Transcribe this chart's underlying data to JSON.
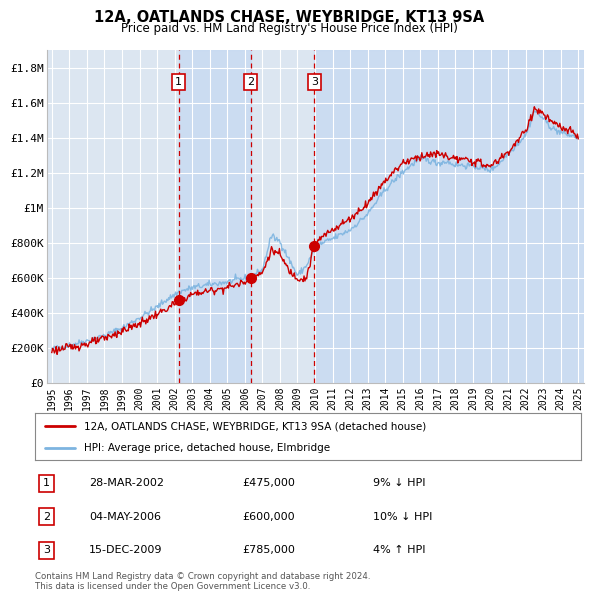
{
  "title": "12A, OATLANDS CHASE, WEYBRIDGE, KT13 9SA",
  "subtitle": "Price paid vs. HM Land Registry's House Price Index (HPI)",
  "legend_line1": "12A, OATLANDS CHASE, WEYBRIDGE, KT13 9SA (detached house)",
  "legend_line2": "HPI: Average price, detached house, Elmbridge",
  "transactions": [
    {
      "num": 1,
      "date": "28-MAR-2002",
      "price": 475000,
      "pct": "9%",
      "dir": "↓"
    },
    {
      "num": 2,
      "date": "04-MAY-2006",
      "price": 600000,
      "pct": "10%",
      "dir": "↓"
    },
    {
      "num": 3,
      "date": "15-DEC-2009",
      "price": 785000,
      "pct": "4%",
      "dir": "↑"
    }
  ],
  "transaction_dates_decimal": [
    2002.23,
    2006.34,
    2009.96
  ],
  "transaction_prices": [
    475000,
    600000,
    785000
  ],
  "hpi_color": "#7db4e0",
  "price_color": "#cc0000",
  "dashed_line_color": "#cc0000",
  "plot_bg_color": "#dce6f1",
  "vline_shade_color": "#c5d9f1",
  "footer_text": "Contains HM Land Registry data © Crown copyright and database right 2024.\nThis data is licensed under the Open Government Licence v3.0.",
  "ylim": [
    0,
    1900000
  ],
  "xlim_start": 1994.7,
  "xlim_end": 2025.3,
  "ytick_values": [
    0,
    200000,
    400000,
    600000,
    800000,
    1000000,
    1200000,
    1400000,
    1600000,
    1800000
  ],
  "ytick_labels": [
    "£0",
    "£200K",
    "£400K",
    "£600K",
    "£800K",
    "£1M",
    "£1.2M",
    "£1.4M",
    "£1.6M",
    "£1.8M"
  ],
  "xtick_years": [
    1995,
    1996,
    1997,
    1998,
    1999,
    2000,
    2001,
    2002,
    2003,
    2004,
    2005,
    2006,
    2007,
    2008,
    2009,
    2010,
    2011,
    2012,
    2013,
    2014,
    2015,
    2016,
    2017,
    2018,
    2019,
    2020,
    2021,
    2022,
    2023,
    2024,
    2025
  ]
}
